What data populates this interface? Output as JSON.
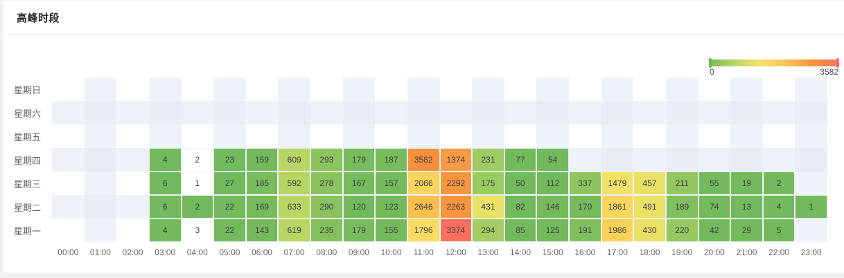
{
  "header": {
    "title": "高峰时段"
  },
  "style": {
    "card_bg": "#ffffff",
    "page_bg": "#eff1f5",
    "divider": "#ebeef5",
    "axis_label_color": "#5f646c",
    "cell_text_color": "#3d3f42",
    "checker_tints": [
      "#ffffff",
      "#eef2f9",
      "#e8edf6"
    ]
  },
  "chart_data": {
    "type": "heatmap",
    "title": "高峰时段",
    "xlabel": "",
    "ylabel": "",
    "grid": "checkerboard split-area",
    "x_categories": [
      "00:00",
      "01:00",
      "02:00",
      "03:00",
      "04:00",
      "05:00",
      "06:00",
      "07:00",
      "08:00",
      "09:00",
      "10:00",
      "11:00",
      "12:00",
      "13:00",
      "14:00",
      "15:00",
      "16:00",
      "17:00",
      "18:00",
      "19:00",
      "20:00",
      "21:00",
      "22:00",
      "23:00"
    ],
    "y_categories_top_to_bottom": [
      "星期日",
      "星期六",
      "星期五",
      "星期四",
      "星期三",
      "星期二",
      "星期一"
    ],
    "visual_map": {
      "min": 0,
      "max": 3582,
      "min_label": "0",
      "max_label": "3582",
      "position": "top-right",
      "gradient": [
        "#7cba62",
        "#b9d766",
        "#fce266",
        "#fbc257",
        "#f9913f",
        "#f8745f"
      ],
      "min_handle_color": "#61c23c",
      "max_handle_color": "#fb6e64"
    },
    "series": [
      {
        "name": "星期日",
        "cells": []
      },
      {
        "name": "星期六",
        "cells": []
      },
      {
        "name": "星期五",
        "cells": []
      },
      {
        "name": "星期四",
        "cells": [
          {
            "hour": "03:00",
            "value": 4,
            "color": "#72ba5c"
          },
          {
            "hour": "04:00",
            "value": 2,
            "color": "#ffffff"
          },
          {
            "hour": "05:00",
            "value": 23,
            "color": "#72ba5c"
          },
          {
            "hour": "06:00",
            "value": 159,
            "color": "#74ba5c"
          },
          {
            "hour": "07:00",
            "value": 609,
            "color": "#b8d665"
          },
          {
            "hour": "08:00",
            "value": 293,
            "color": "#8cc35f"
          },
          {
            "hour": "09:00",
            "value": 179,
            "color": "#79bc5d"
          },
          {
            "hour": "10:00",
            "value": 187,
            "color": "#79bc5d"
          },
          {
            "hour": "11:00",
            "value": 3582,
            "color": "#f88f3b"
          },
          {
            "hour": "12:00",
            "value": 1374,
            "color": "#f99a47"
          },
          {
            "hour": "13:00",
            "value": 231,
            "color": "#9ecb63"
          },
          {
            "hour": "14:00",
            "value": 77,
            "color": "#72ba5c"
          },
          {
            "hour": "15:00",
            "value": 54,
            "color": "#72ba5c"
          }
        ]
      },
      {
        "name": "星期三",
        "cells": [
          {
            "hour": "03:00",
            "value": 6,
            "color": "#72ba5c"
          },
          {
            "hour": "04:00",
            "value": 1,
            "color": "#ffffff"
          },
          {
            "hour": "05:00",
            "value": 27,
            "color": "#72ba5c"
          },
          {
            "hour": "06:00",
            "value": 185,
            "color": "#79bc5d"
          },
          {
            "hour": "07:00",
            "value": 592,
            "color": "#b5d565"
          },
          {
            "hour": "08:00",
            "value": 278,
            "color": "#8ac25e"
          },
          {
            "hour": "09:00",
            "value": 167,
            "color": "#77bb5d"
          },
          {
            "hour": "10:00",
            "value": 157,
            "color": "#75ba5d"
          },
          {
            "hour": "11:00",
            "value": 2066,
            "color": "#fbd45e"
          },
          {
            "hour": "12:00",
            "value": 2292,
            "color": "#f9953f"
          },
          {
            "hour": "13:00",
            "value": 175,
            "color": "#9aca62"
          },
          {
            "hour": "14:00",
            "value": 50,
            "color": "#72ba5c"
          },
          {
            "hour": "15:00",
            "value": 112,
            "color": "#73ba5c"
          },
          {
            "hour": "16:00",
            "value": 337,
            "color": "#8fc560"
          },
          {
            "hour": "17:00",
            "value": 1479,
            "color": "#f2e269"
          },
          {
            "hour": "18:00",
            "value": 457,
            "color": "#eae066"
          },
          {
            "hour": "19:00",
            "value": 211,
            "color": "#93c661"
          },
          {
            "hour": "20:00",
            "value": 55,
            "color": "#72ba5c"
          },
          {
            "hour": "21:00",
            "value": 19,
            "color": "#72ba5c"
          },
          {
            "hour": "22:00",
            "value": 2,
            "color": "#72ba5c"
          }
        ]
      },
      {
        "name": "星期二",
        "cells": [
          {
            "hour": "03:00",
            "value": 6,
            "color": "#72ba5c"
          },
          {
            "hour": "04:00",
            "value": 2,
            "color": "#72ba5c"
          },
          {
            "hour": "05:00",
            "value": 22,
            "color": "#72ba5c"
          },
          {
            "hour": "06:00",
            "value": 169,
            "color": "#77bb5d"
          },
          {
            "hour": "07:00",
            "value": 633,
            "color": "#bad766"
          },
          {
            "hour": "08:00",
            "value": 290,
            "color": "#8bc25f"
          },
          {
            "hour": "09:00",
            "value": 120,
            "color": "#73ba5c"
          },
          {
            "hour": "10:00",
            "value": 123,
            "color": "#73ba5c"
          },
          {
            "hour": "11:00",
            "value": 2646,
            "color": "#fbbf4e"
          },
          {
            "hour": "12:00",
            "value": 2263,
            "color": "#f9943f"
          },
          {
            "hour": "13:00",
            "value": 431,
            "color": "#e9e066"
          },
          {
            "hour": "14:00",
            "value": 82,
            "color": "#72ba5c"
          },
          {
            "hour": "15:00",
            "value": 146,
            "color": "#75ba5d"
          },
          {
            "hour": "16:00",
            "value": 170,
            "color": "#77bb5d"
          },
          {
            "hour": "17:00",
            "value": 1861,
            "color": "#fbd65f"
          },
          {
            "hour": "18:00",
            "value": 491,
            "color": "#ece167"
          },
          {
            "hour": "19:00",
            "value": 189,
            "color": "#80bf5e"
          },
          {
            "hour": "20:00",
            "value": 74,
            "color": "#72ba5c"
          },
          {
            "hour": "21:00",
            "value": 13,
            "color": "#72ba5c"
          },
          {
            "hour": "22:00",
            "value": 4,
            "color": "#72ba5c"
          },
          {
            "hour": "23:00",
            "value": 1,
            "color": "#72ba5c"
          }
        ]
      },
      {
        "name": "星期一",
        "cells": [
          {
            "hour": "03:00",
            "value": 4,
            "color": "#72ba5c"
          },
          {
            "hour": "04:00",
            "value": 3,
            "color": "#ffffff"
          },
          {
            "hour": "05:00",
            "value": 22,
            "color": "#72ba5c"
          },
          {
            "hour": "06:00",
            "value": 143,
            "color": "#75ba5d"
          },
          {
            "hour": "07:00",
            "value": 619,
            "color": "#b9d665"
          },
          {
            "hour": "08:00",
            "value": 235,
            "color": "#84c05e"
          },
          {
            "hour": "09:00",
            "value": 179,
            "color": "#79bc5d"
          },
          {
            "hour": "10:00",
            "value": 155,
            "color": "#75ba5d"
          },
          {
            "hour": "11:00",
            "value": 1796,
            "color": "#fbdb62"
          },
          {
            "hour": "12:00",
            "value": 3374,
            "color": "#f8705c"
          },
          {
            "hour": "13:00",
            "value": 294,
            "color": "#a5cd64"
          },
          {
            "hour": "14:00",
            "value": 85,
            "color": "#72ba5c"
          },
          {
            "hour": "15:00",
            "value": 125,
            "color": "#73ba5c"
          },
          {
            "hour": "16:00",
            "value": 191,
            "color": "#80bf5e"
          },
          {
            "hour": "17:00",
            "value": 1986,
            "color": "#fbd157"
          },
          {
            "hour": "18:00",
            "value": 430,
            "color": "#e9e066"
          },
          {
            "hour": "19:00",
            "value": 220,
            "color": "#96c761"
          },
          {
            "hour": "20:00",
            "value": 42,
            "color": "#72ba5c"
          },
          {
            "hour": "21:00",
            "value": 29,
            "color": "#72ba5c"
          },
          {
            "hour": "22:00",
            "value": 5,
            "color": "#72ba5c"
          }
        ]
      }
    ]
  }
}
